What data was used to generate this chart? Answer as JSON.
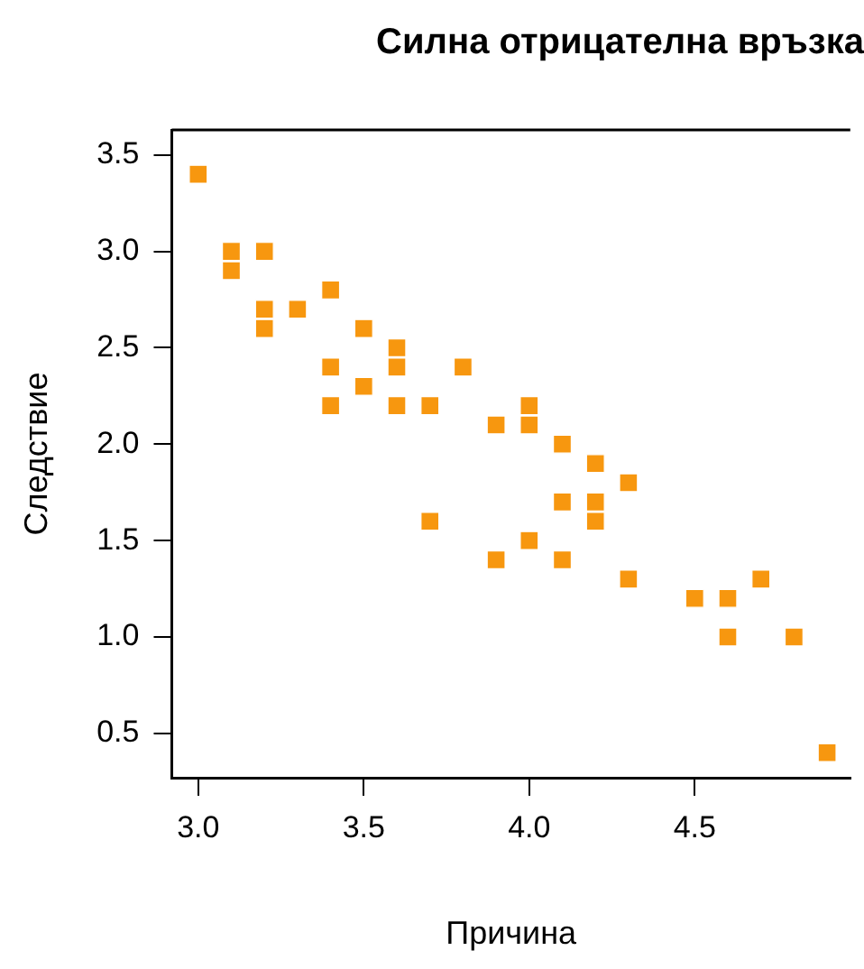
{
  "chart_data": {
    "type": "scatter",
    "title": "Силна отрицателна връзка",
    "xlabel": "Причина",
    "ylabel": "Следствие",
    "x": [
      3.0,
      3.1,
      3.1,
      3.2,
      3.2,
      3.2,
      3.3,
      3.4,
      3.4,
      3.4,
      3.5,
      3.5,
      3.6,
      3.6,
      3.6,
      3.7,
      3.7,
      3.8,
      3.9,
      3.9,
      4.0,
      4.0,
      4.0,
      4.1,
      4.1,
      4.1,
      4.2,
      4.2,
      4.2,
      4.3,
      4.3,
      4.5,
      4.6,
      4.6,
      4.7,
      4.8,
      4.9
    ],
    "series": [
      {
        "color": "#f7970f",
        "values": [
          3.4,
          3.0,
          2.9,
          3.0,
          2.7,
          2.6,
          2.7,
          2.8,
          2.4,
          2.2,
          2.6,
          2.3,
          2.5,
          2.4,
          2.2,
          2.2,
          1.6,
          2.4,
          2.1,
          1.4,
          2.2,
          2.1,
          1.5,
          2.0,
          1.7,
          1.4,
          1.9,
          1.7,
          1.6,
          1.8,
          1.3,
          1.2,
          1.2,
          1.0,
          1.3,
          1.0,
          0.4
        ]
      }
    ],
    "xlim": [
      2.92,
      4.97
    ],
    "ylim": [
      0.27,
      3.63
    ],
    "xticks": [
      {
        "value": 3,
        "label": "3.0"
      },
      3.5,
      {
        "value": 4,
        "label": "4.0"
      },
      4.5
    ],
    "yticks": [
      0.5,
      {
        "value": 1,
        "label": "1.0"
      },
      1.5,
      {
        "value": 2,
        "label": "2.0"
      },
      2.5,
      {
        "value": 3,
        "label": "3.0"
      },
      3.5
    ],
    "grid": false,
    "legend": false,
    "marker": "square"
  }
}
